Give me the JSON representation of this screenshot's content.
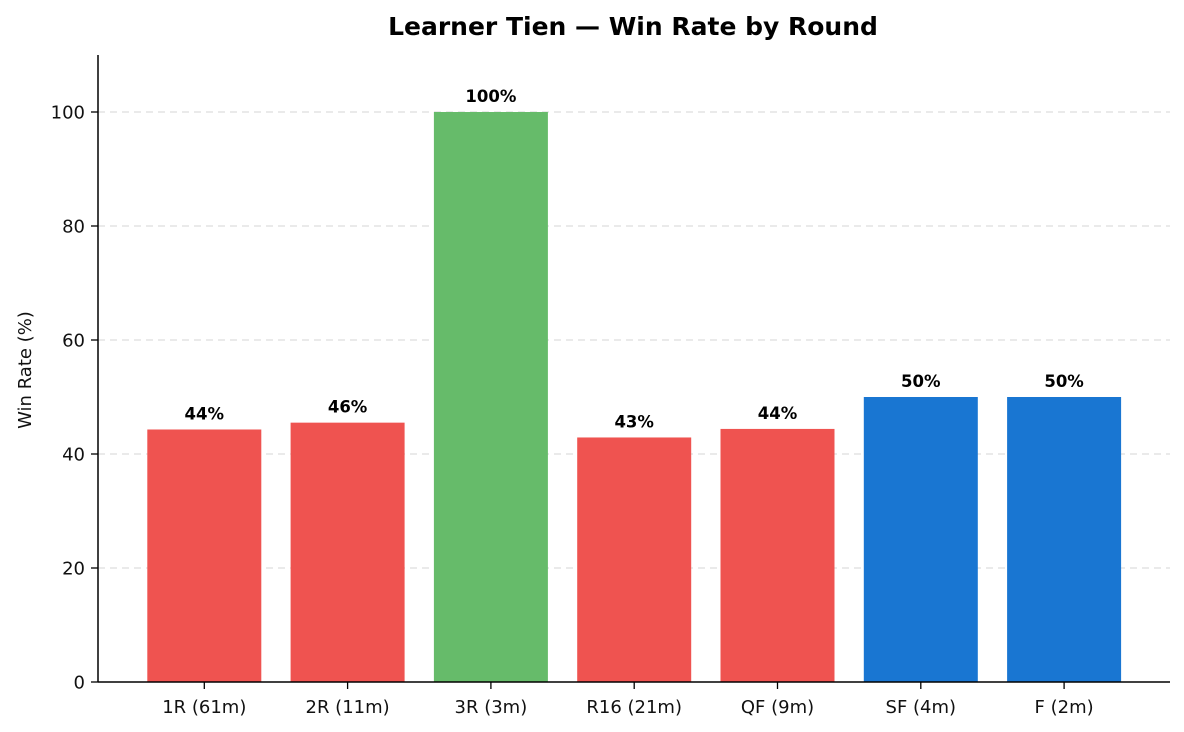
{
  "chart_data": {
    "type": "bar",
    "title": "Learner Tien — Win Rate by Round",
    "xlabel": "",
    "ylabel": "Win Rate (%)",
    "ylim": [
      0,
      110
    ],
    "yticks": [
      0,
      20,
      40,
      60,
      80,
      100
    ],
    "grid": "y-dashed",
    "categories": [
      "1R (61m)",
      "2R (11m)",
      "3R (3m)",
      "R16 (21m)",
      "QF (9m)",
      "SF (4m)",
      "F (2m)"
    ],
    "values": [
      44.3,
      45.5,
      100,
      42.9,
      44.4,
      50,
      50
    ],
    "data_labels": [
      "44%",
      "46%",
      "100%",
      "43%",
      "44%",
      "50%",
      "50%"
    ],
    "colors": [
      "#ef5350",
      "#ef5350",
      "#66bb6a",
      "#ef5350",
      "#ef5350",
      "#1976d2",
      "#1976d2"
    ]
  }
}
